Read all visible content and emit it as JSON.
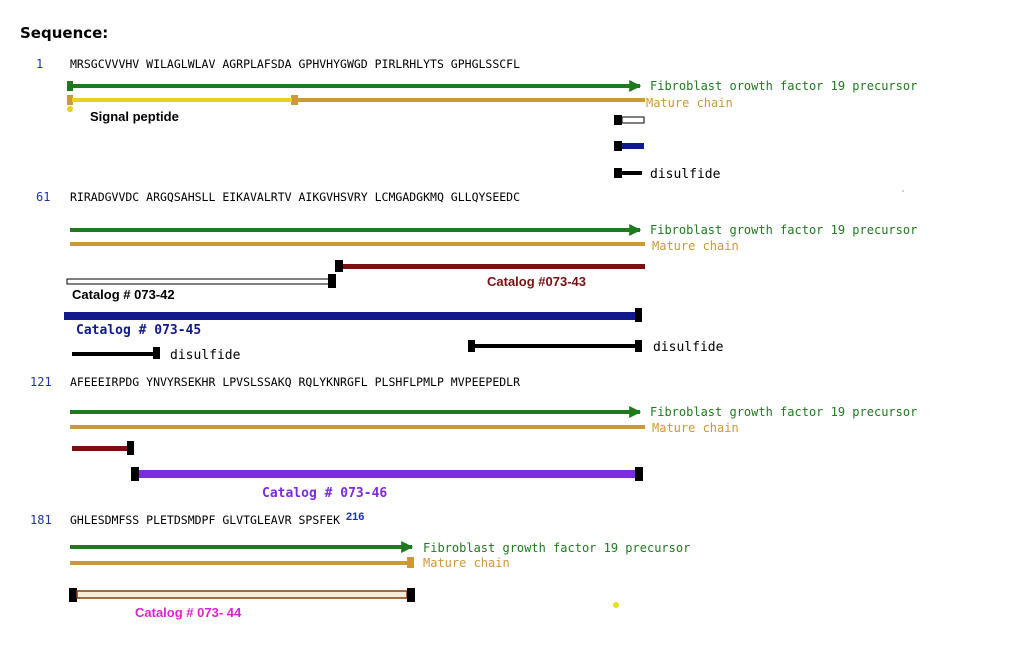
{
  "title": "Sequence:",
  "feature_labels": {
    "precursor_truncated": "Fibroblast orowth factor 19 precursor",
    "precursor": "Fibroblast growth factor 19 precursor",
    "mature": "Mature chain",
    "signal": "Signal peptide",
    "disulfide": "disulfide"
  },
  "colors": {
    "precursor": "#1f7a1f",
    "mature": "#cc9933",
    "signal": "#e6d21a",
    "catalog_073_43": "#7a1010",
    "catalog_073_45": "#101a8c",
    "catalog_073_46": "#7b2be0",
    "catalog_073_44_text": "#e020d0",
    "catalog_073_44_fill": "#f6ecd8",
    "catalog_073_44_border": "#8c3a0a",
    "number": "#1a33b3"
  },
  "rows": [
    {
      "start": "1",
      "sequence": "MRSGCVVVHV WILAGLWLAV AGRPLAFSDA GPHVHYGWGD PIRLRHLYTS GPHGLSSCFL"
    },
    {
      "start": "61",
      "sequence": "RIRADGVVDC ARGQSAHSLL EIKAVALRTV AIKGVHSVRY LCMGADGKMQ GLLQYSEEDC"
    },
    {
      "start": "121",
      "sequence": "AFEEEIRPDG YNVYRSEKHR LPVSLSSAKQ RQLYKNRGFL PLSHFLPMLP MVPEEPEDLR"
    },
    {
      "start": "181",
      "sequence": "GHLESDMFSS PLETDSMDPF GLVTGLEAVR SPSFEK",
      "end": "216"
    }
  ],
  "catalogs": {
    "c42": "Catalog # 073-42",
    "c43": "Catalog #073-43",
    "c45": "Catalog # 073-45",
    "c46": "Catalog # 073-46",
    "c44": "Catalog # 073- 44"
  }
}
